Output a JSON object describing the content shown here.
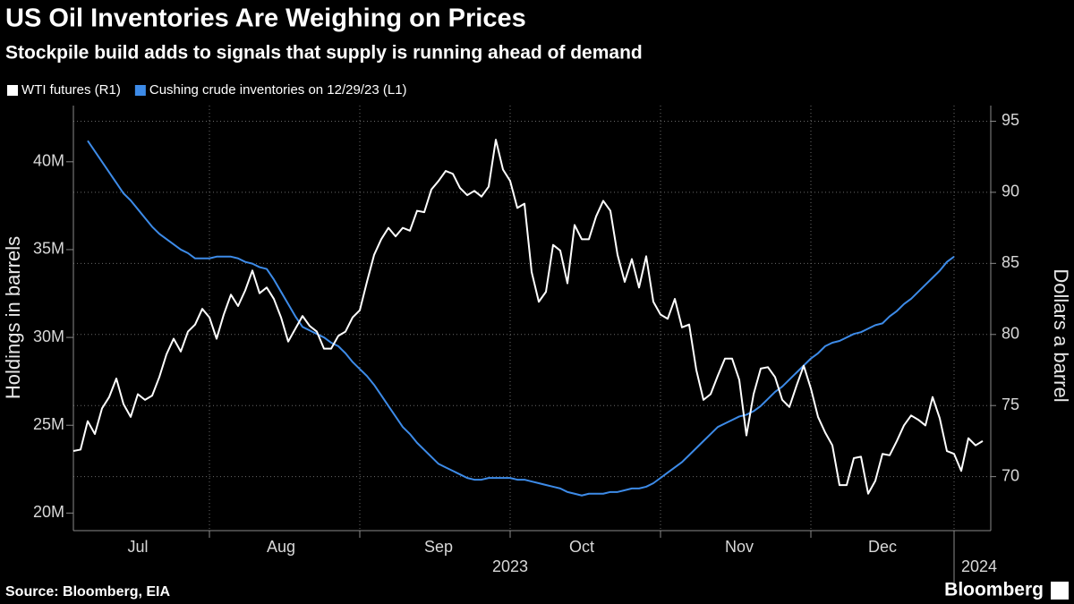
{
  "chart_data": {
    "type": "line",
    "title": "US Oil Inventories Are Weighing on Prices",
    "subtitle": "Stockpile build adds to signals that supply is running ahead of demand",
    "source": "Source: Bloomberg, EIA",
    "brand": "Bloomberg",
    "y_label": "Holdings in barrels",
    "y2_label": "Dollars a barrel",
    "legend": "top-left",
    "grid": true,
    "categories": [
      null,
      null,
      null,
      null,
      null,
      null,
      null,
      null,
      null,
      "Jul",
      null,
      null,
      null,
      null,
      null,
      null,
      null,
      null,
      null,
      null,
      null,
      null,
      null,
      null,
      null,
      null,
      null,
      null,
      null,
      "Aug",
      null,
      null,
      null,
      null,
      null,
      null,
      null,
      null,
      null,
      null,
      null,
      null,
      null,
      null,
      null,
      null,
      null,
      null,
      null,
      null,
      null,
      "Sep",
      null,
      null,
      null,
      null,
      null,
      null,
      null,
      null,
      null,
      null,
      null,
      null,
      null,
      null,
      null,
      null,
      null,
      null,
      null,
      "Oct",
      null,
      null,
      null,
      null,
      null,
      null,
      null,
      null,
      null,
      null,
      null,
      null,
      null,
      null,
      null,
      null,
      null,
      null,
      null,
      null,
      null,
      "Nov",
      null,
      null,
      null,
      null,
      null,
      null,
      null,
      null,
      null,
      null,
      null,
      null,
      null,
      null,
      null,
      null,
      null,
      null,
      null,
      "Dec",
      null,
      null,
      null,
      null,
      null,
      null,
      null,
      null,
      null,
      null,
      null,
      null,
      null,
      null
    ],
    "x_groups": [
      "2023",
      "2024"
    ],
    "ylim": [
      19000000,
      43200000
    ],
    "yticks": [
      {
        "value": 20000000,
        "label": "20M"
      },
      {
        "value": 25000000,
        "label": "25M"
      },
      {
        "value": 30000000,
        "label": "30M"
      },
      {
        "value": 35000000,
        "label": "35M"
      },
      {
        "value": 40000000,
        "label": "40M"
      }
    ],
    "y2lim": [
      66.2,
      96.1
    ],
    "y2ticks": [
      70,
      75,
      80,
      85,
      90,
      95
    ],
    "series": [
      {
        "name": "WTI futures (R1)",
        "color": "#ffffff",
        "axis": "y2",
        "values": [
          71.8,
          71.9,
          73.9,
          73.0,
          74.8,
          75.6,
          76.9,
          75.1,
          74.2,
          75.8,
          75.4,
          75.7,
          77.0,
          78.6,
          79.7,
          78.8,
          80.2,
          80.7,
          81.8,
          81.2,
          79.7,
          81.4,
          82.8,
          82.0,
          83.1,
          84.5,
          82.9,
          83.3,
          82.5,
          81.2,
          79.5,
          80.4,
          81.3,
          80.6,
          80.2,
          79.0,
          79.0,
          79.9,
          80.2,
          81.2,
          81.7,
          83.7,
          85.6,
          86.7,
          87.5,
          86.9,
          87.5,
          87.3,
          88.7,
          88.6,
          90.2,
          90.8,
          91.5,
          91.3,
          90.3,
          89.8,
          90.1,
          89.7,
          90.4,
          93.7,
          91.6,
          90.8,
          88.9,
          89.2,
          84.4,
          82.3,
          83.0,
          86.3,
          85.9,
          83.6,
          87.7,
          86.7,
          86.7,
          88.3,
          89.4,
          88.7,
          85.6,
          83.7,
          85.3,
          83.3,
          85.5,
          82.3,
          81.4,
          81.1,
          82.5,
          80.5,
          80.7,
          77.5,
          75.4,
          75.8,
          77.1,
          78.3,
          78.3,
          76.8,
          72.9,
          75.8,
          77.6,
          77.7,
          77.0,
          75.4,
          74.9,
          76.4,
          77.8,
          76.2,
          74.2,
          73.1,
          72.2,
          69.4,
          69.4,
          71.3,
          71.4,
          68.8,
          69.7,
          71.6,
          71.5,
          72.5,
          73.6,
          74.3,
          74.0,
          73.6,
          75.6,
          74.1,
          71.8,
          71.6,
          70.4,
          72.7,
          72.2,
          72.5
        ]
      },
      {
        "name": "Cushing crude inventories on 12/29/23 (L1)",
        "color": "#3d8be8",
        "values": [
          null,
          null,
          41200000,
          40600000,
          40000000,
          39400000,
          38800000,
          38200000,
          37800000,
          37300000,
          36800000,
          36300000,
          35900000,
          35600000,
          35300000,
          35000000,
          34800000,
          34500000,
          34500000,
          34500000,
          34600000,
          34600000,
          34600000,
          34500000,
          34300000,
          34200000,
          34000000,
          33900000,
          33300000,
          32600000,
          31900000,
          31200000,
          30600000,
          30400000,
          30200000,
          30000000,
          29700000,
          29500000,
          29100000,
          28600000,
          28200000,
          27800000,
          27300000,
          26700000,
          26100000,
          25500000,
          24900000,
          24500000,
          24000000,
          23600000,
          23200000,
          22800000,
          22600000,
          22400000,
          22200000,
          22000000,
          21900000,
          21900000,
          22000000,
          22000000,
          22000000,
          22000000,
          21900000,
          21900000,
          21800000,
          21700000,
          21600000,
          21500000,
          21400000,
          21200000,
          21100000,
          21000000,
          21100000,
          21100000,
          21100000,
          21200000,
          21200000,
          21300000,
          21400000,
          21400000,
          21500000,
          21700000,
          22000000,
          22300000,
          22600000,
          22900000,
          23300000,
          23700000,
          24100000,
          24500000,
          24900000,
          25100000,
          25300000,
          25500000,
          25600000,
          25800000,
          26100000,
          26500000,
          26900000,
          27200000,
          27600000,
          28000000,
          28400000,
          28800000,
          29100000,
          29500000,
          29700000,
          29800000,
          30000000,
          30200000,
          30300000,
          30500000,
          30700000,
          30800000,
          31200000,
          31500000,
          31900000,
          32200000,
          32600000,
          33000000,
          33400000,
          33800000,
          34300000,
          34600000,
          null,
          null,
          null,
          null
        ]
      }
    ]
  }
}
